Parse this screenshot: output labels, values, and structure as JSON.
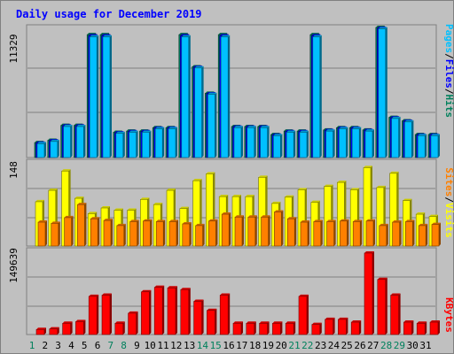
{
  "title": "Daily usage for December 2019",
  "colors": {
    "background": "#c0c0c0",
    "title": "#0000ff",
    "hits": "#00805c",
    "files": "#0000ff",
    "pages": "#00c0ff",
    "visits": "#ffff00",
    "sites": "#ff8000",
    "kbytes": "#ff0000",
    "weekend": "#00805c",
    "weekday": "#000000"
  },
  "side_labels": {
    "top": [
      "Pages",
      "/",
      "Files",
      "/",
      "Hits"
    ],
    "middle": [
      "Sites",
      "/",
      "Visits"
    ],
    "bottom": [
      "KBytes"
    ]
  },
  "chart_data": {
    "type": "bar",
    "title": "Daily usage for December 2019",
    "categories": [
      "1",
      "2",
      "3",
      "4",
      "5",
      "6",
      "7",
      "8",
      "9",
      "10",
      "11",
      "12",
      "13",
      "14",
      "15",
      "16",
      "17",
      "18",
      "19",
      "20",
      "21",
      "22",
      "23",
      "24",
      "25",
      "26",
      "27",
      "28",
      "29",
      "30",
      "31"
    ],
    "weekend_days": [
      "1",
      "7",
      "8",
      "14",
      "15",
      "21",
      "22",
      "28",
      "29"
    ],
    "panels": [
      {
        "name": "hits-files-pages",
        "max_label": "11329",
        "ylim": [
          0,
          11329
        ],
        "series": [
          {
            "name": "Hits",
            "color": "#00805c",
            "values": [
              1300,
              1500,
              2800,
              2800,
              10700,
              10700,
              2200,
              2300,
              2300,
              2600,
              2600,
              10700,
              7900,
              5600,
              10700,
              2700,
              2700,
              2700,
              2000,
              2300,
              2300,
              10700,
              2400,
              2600,
              2600,
              2400,
              11329,
              3500,
              3200,
              2000,
              2000
            ]
          },
          {
            "name": "Files",
            "color": "#0000ff",
            "values": [
              1250,
              1450,
              2750,
              2750,
              10600,
              10600,
              2150,
              2250,
              2250,
              2550,
              2550,
              10600,
              7850,
              5550,
              10600,
              2650,
              2650,
              2650,
              1950,
              2250,
              2250,
              10600,
              2350,
              2550,
              2550,
              2350,
              11250,
              3450,
              3150,
              1950,
              1950
            ]
          },
          {
            "name": "Pages",
            "color": "#00c0ff",
            "values": [
              1200,
              1400,
              2700,
              2700,
              10500,
              10500,
              2100,
              2200,
              2200,
              2500,
              2500,
              10500,
              7800,
              5500,
              10500,
              2600,
              2600,
              2600,
              1900,
              2200,
              2200,
              10500,
              2300,
              2500,
              2500,
              2300,
              11200,
              3400,
              3100,
              1900,
              1900
            ]
          }
        ]
      },
      {
        "name": "visits-sites",
        "max_label": "148",
        "ylim": [
          0,
          148
        ],
        "series": [
          {
            "name": "Visits",
            "color": "#ffff00",
            "values": [
              78,
              98,
              132,
              84,
              57,
              67,
              63,
              63,
              82,
              73,
              98,
              66,
              115,
              127,
              87,
              87,
              87,
              121,
              75,
              86,
              99,
              77,
              105,
              112,
              99,
              138,
              103,
              128,
              80,
              56,
              52
            ]
          },
          {
            "name": "Sites",
            "color": "#ff8000",
            "values": [
              42,
              40,
              50,
              73,
              48,
              45,
              36,
              43,
              44,
              43,
              43,
              39,
              36,
              44,
              56,
              51,
              51,
              51,
              60,
              48,
              42,
              43,
              43,
              44,
              43,
              44,
              36,
              42,
              43,
              36,
              38
            ]
          }
        ]
      },
      {
        "name": "kbytes",
        "max_label": "149639",
        "ylim": [
          0,
          149639
        ],
        "series": [
          {
            "name": "KBytes",
            "color": "#ff0000",
            "values": [
              9000,
              10000,
              20000,
              23000,
              68000,
              70000,
              20000,
              38000,
              76000,
              84000,
              83000,
              80000,
              59000,
              43000,
              70000,
              20000,
              20000,
              20000,
              20000,
              20000,
              68000,
              18000,
              27000,
              27000,
              22000,
              145000,
              98000,
              70000,
              22000,
              20000,
              22000
            ]
          }
        ]
      }
    ]
  }
}
